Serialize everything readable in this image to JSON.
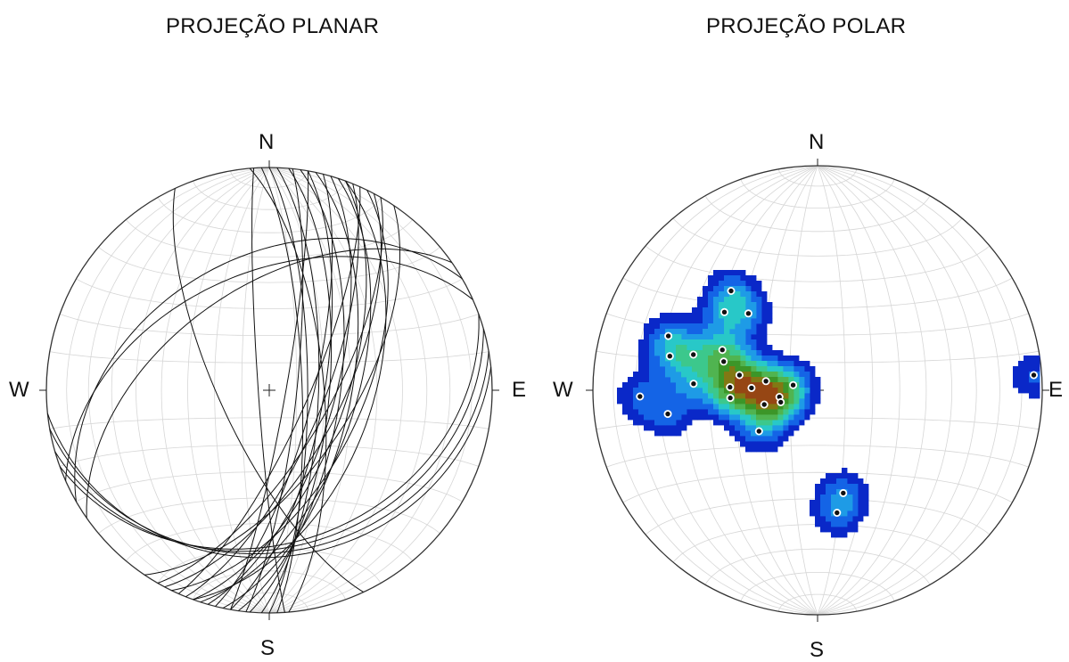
{
  "panels": {
    "left": {
      "title": "PROJEÇÃO PLANAR",
      "cardinals": {
        "n": "N",
        "s": "S",
        "e": "E",
        "w": "W"
      },
      "great_circles": [
        {
          "dip_direction": 88,
          "dip": 78
        },
        {
          "dip_direction": 92,
          "dip": 72
        },
        {
          "dip_direction": 95,
          "dip": 68
        },
        {
          "dip_direction": 98,
          "dip": 64
        },
        {
          "dip_direction": 100,
          "dip": 70
        },
        {
          "dip_direction": 102,
          "dip": 60
        },
        {
          "dip_direction": 104,
          "dip": 74
        },
        {
          "dip_direction": 106,
          "dip": 66
        },
        {
          "dip_direction": 108,
          "dip": 58
        },
        {
          "dip_direction": 110,
          "dip": 62
        },
        {
          "dip_direction": 112,
          "dip": 70
        },
        {
          "dip_direction": 114,
          "dip": 76
        },
        {
          "dip_direction": 116,
          "dip": 56
        },
        {
          "dip_direction": 118,
          "dip": 64
        },
        {
          "dip_direction": 120,
          "dip": 68
        },
        {
          "dip_direction": 96,
          "dip": 80
        },
        {
          "dip_direction": 100,
          "dip": 84
        },
        {
          "dip_direction": 124,
          "dip": 60
        },
        {
          "dip_direction": 90,
          "dip": 76
        },
        {
          "dip_direction": 110,
          "dip": 52
        },
        {
          "dip_direction": 85,
          "dip": 70
        },
        {
          "dip_direction": 266,
          "dip": 86
        },
        {
          "dip_direction": 160,
          "dip": 32
        },
        {
          "dip_direction": 164,
          "dip": 30
        },
        {
          "dip_direction": 170,
          "dip": 28
        },
        {
          "dip_direction": 174,
          "dip": 26
        },
        {
          "dip_direction": 330,
          "dip": 40
        },
        {
          "dip_direction": 336,
          "dip": 46
        },
        {
          "dip_direction": 325,
          "dip": 52
        },
        {
          "dip_direction": 245,
          "dip": 72
        }
      ]
    },
    "right": {
      "title": "PROJEÇÃO POLAR",
      "cardinals": {
        "n": "N",
        "s": "S",
        "e": "E",
        "w": "W"
      },
      "poles": [
        {
          "trend": 310,
          "plunge": 45
        },
        {
          "trend": 318,
          "plunge": 52
        },
        {
          "trend": 319,
          "plunge": 41
        },
        {
          "trend": 268,
          "plunge": 22
        },
        {
          "trend": 283,
          "plunge": 33
        },
        {
          "trend": 286,
          "plunge": 42
        },
        {
          "trend": 261,
          "plunge": 33
        },
        {
          "trend": 290,
          "plunge": 30
        },
        {
          "trend": 293,
          "plunge": 52
        },
        {
          "trend": 273,
          "plunge": 44
        },
        {
          "trend": 287,
          "plunge": 54
        },
        {
          "trend": 272,
          "plunge": 58
        },
        {
          "trend": 281,
          "plunge": 61
        },
        {
          "trend": 265,
          "plunge": 58
        },
        {
          "trend": 272,
          "plunge": 66
        },
        {
          "trend": 280,
          "plunge": 71
        },
        {
          "trend": 255,
          "plunge": 70
        },
        {
          "trend": 260,
          "plunge": 76
        },
        {
          "trend": 252,
          "plunge": 76
        },
        {
          "trend": 282,
          "plunge": 81
        },
        {
          "trend": 235,
          "plunge": 64
        },
        {
          "trend": 166,
          "plunge": 51
        },
        {
          "trend": 171,
          "plunge": 44
        },
        {
          "trend": 86,
          "plunge": 4
        }
      ],
      "contour_colors": [
        "#0a28c8",
        "#1464e6",
        "#1e9be6",
        "#28c8c8",
        "#3cc88c",
        "#50b450",
        "#3c9628",
        "#827814",
        "#964614"
      ]
    }
  }
}
